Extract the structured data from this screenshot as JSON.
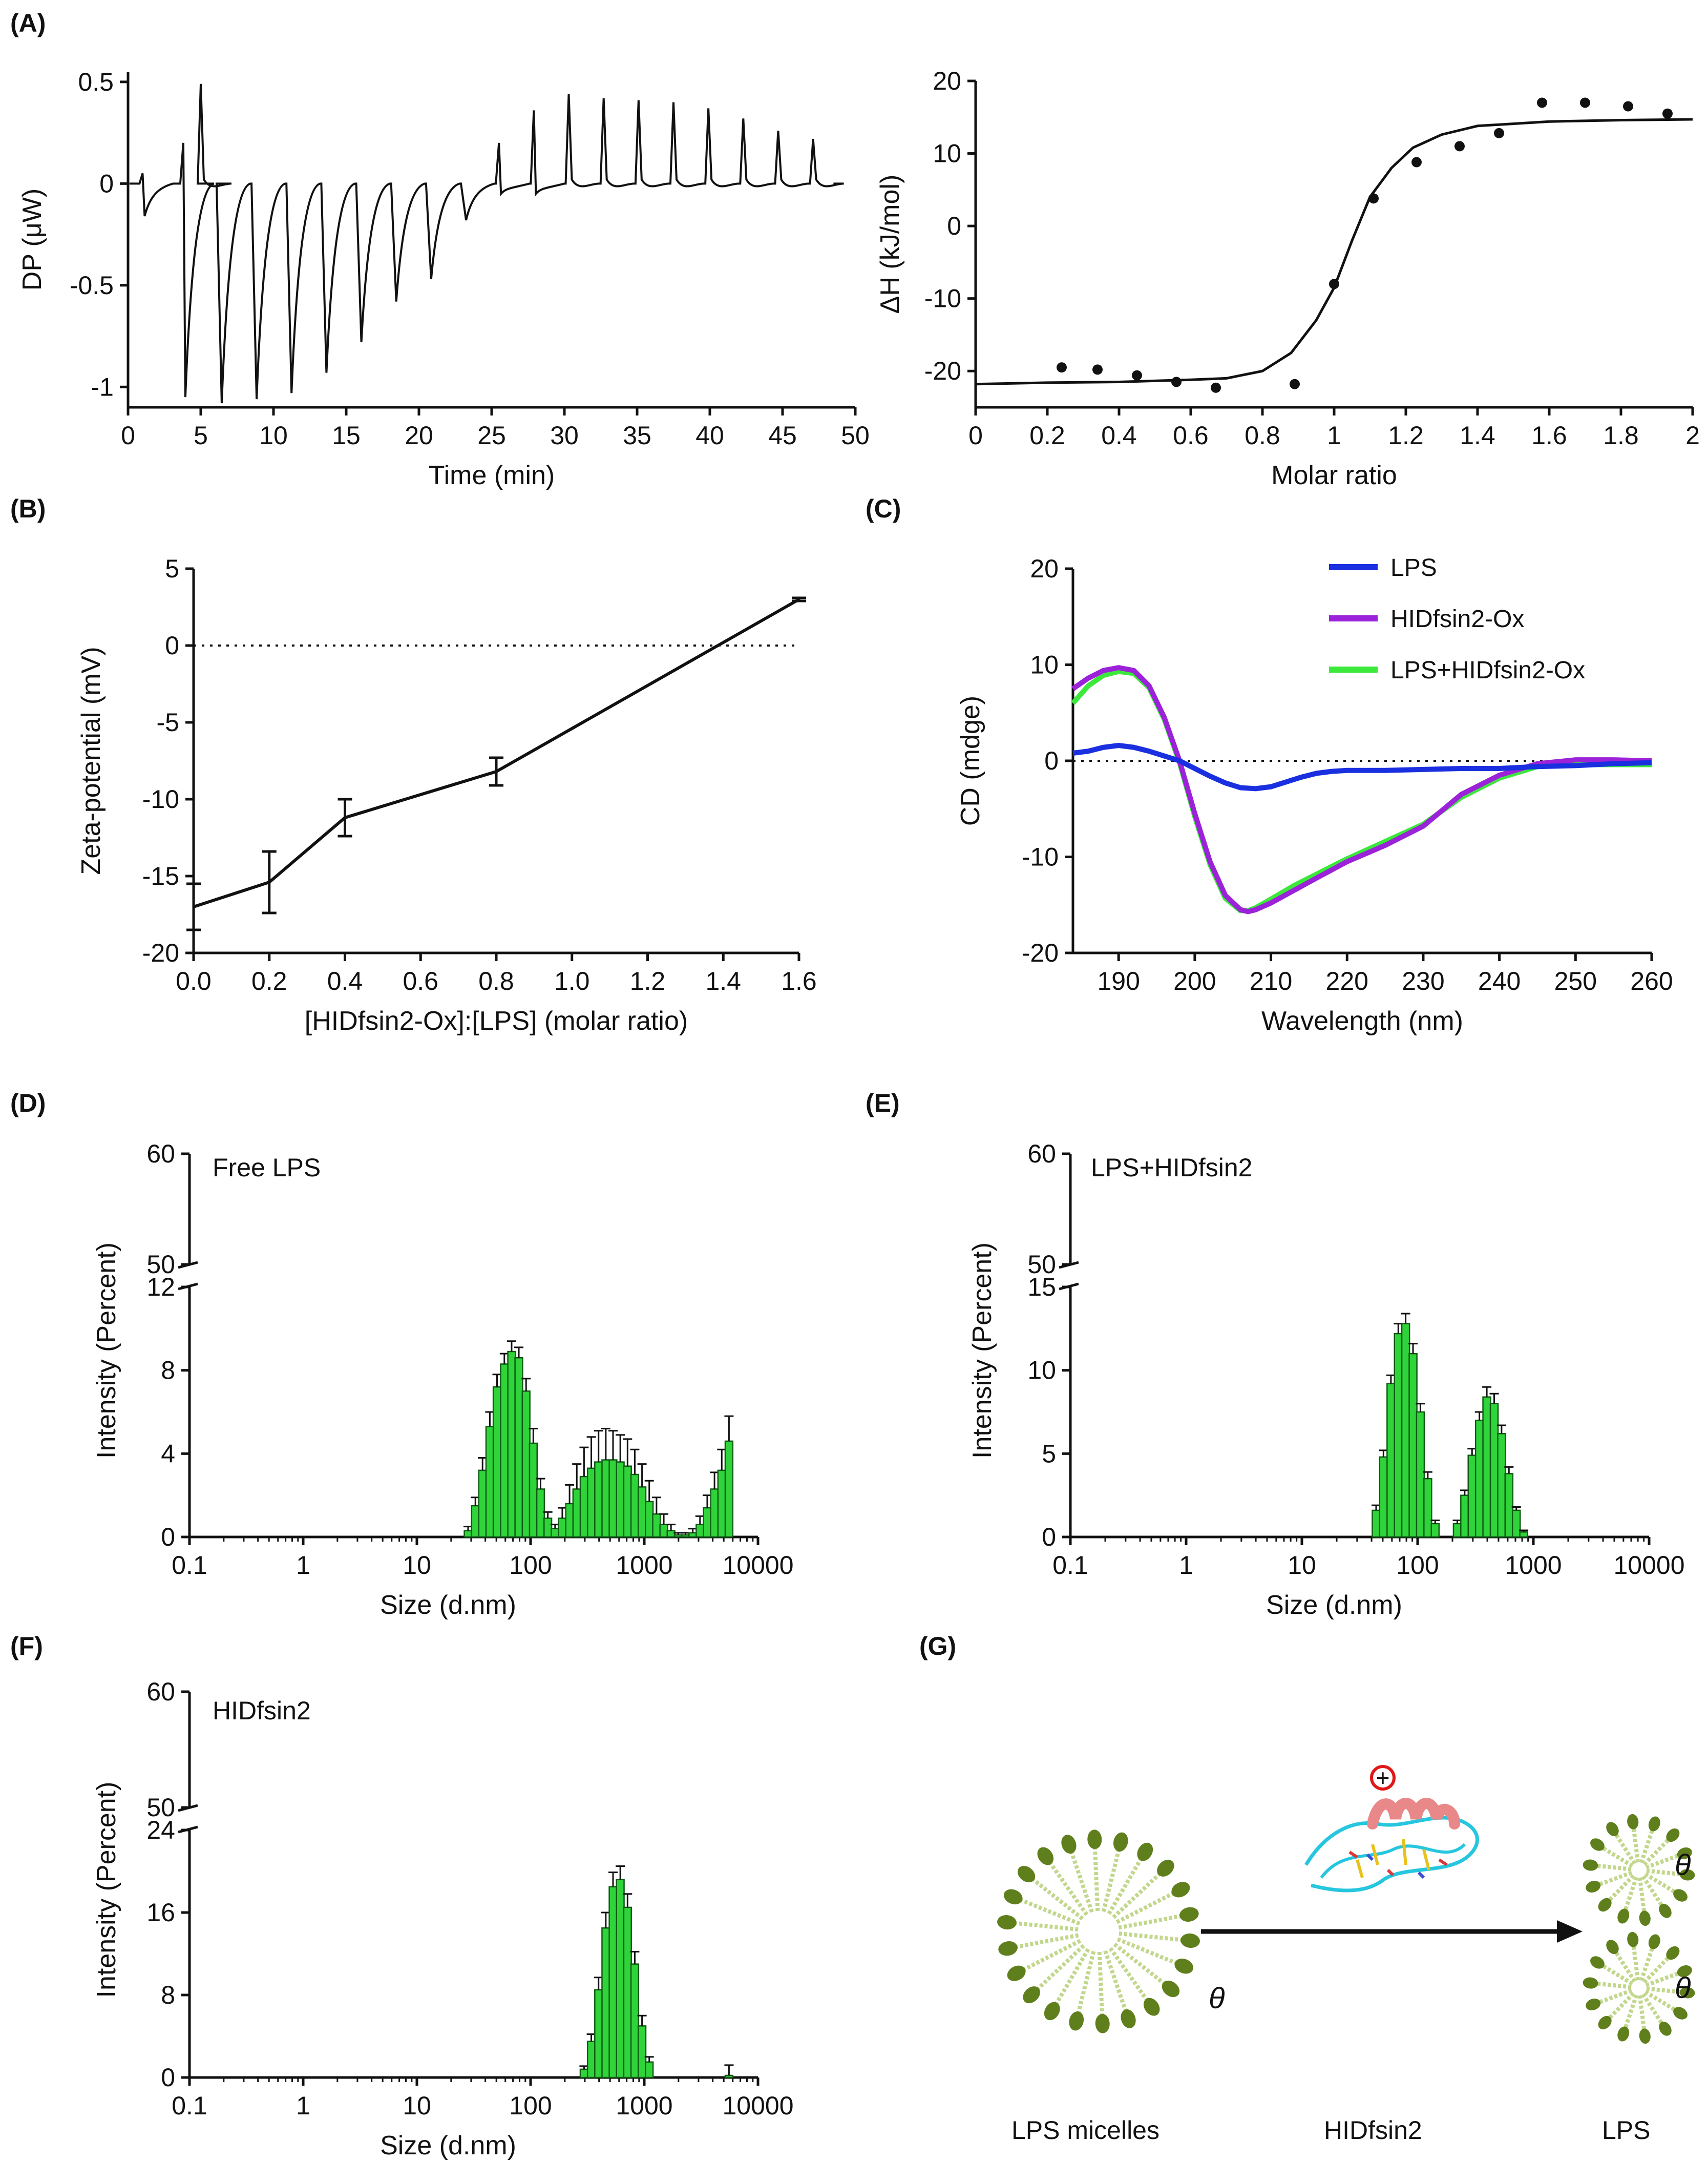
{
  "colors": {
    "lps": "#1a2fe0",
    "hidfsin2ox": "#9b22d8",
    "lps_hidfsin2ox": "#3ce83c",
    "bar_fill": "#2fd43a",
    "bar_edge": "#0f5a12",
    "micelle_head": "#5f7f1c",
    "micelle_tail": "#c2d78c",
    "peptide_helix": "#e88888",
    "peptide_coil": "#26c6de",
    "charge_plus": "#e01818"
  },
  "chart_data": [
    {
      "id": "A1",
      "panel": "(A)",
      "type": "line",
      "xlabel": "Time (min)",
      "ylabel": "DP (μW)",
      "xlim": [
        0,
        50
      ],
      "ylim": [
        -1.1,
        0.55
      ],
      "xticks": [
        "0",
        "5",
        "10",
        "15",
        "20",
        "25",
        "30",
        "35",
        "40",
        "45",
        "50"
      ],
      "yticks": [
        "0.5",
        "0",
        "-0.5",
        "-1"
      ],
      "baseline": 0.0,
      "spikes": [
        {
          "t": 1.0,
          "up": 0.05,
          "down": -0.16
        },
        {
          "t": 3.8,
          "up": 0.2,
          "down": -1.05
        },
        {
          "t": 5.0,
          "up": 0.49,
          "down": 0.0
        },
        {
          "t": 6.3,
          "up": 0.03,
          "down": -1.08
        },
        {
          "t": 8.7,
          "up": 0.03,
          "down": -1.06
        },
        {
          "t": 11.1,
          "up": 0.03,
          "down": -1.03
        },
        {
          "t": 13.5,
          "up": 0.03,
          "down": -0.93
        },
        {
          "t": 15.9,
          "up": 0.03,
          "down": -0.78
        },
        {
          "t": 18.3,
          "up": 0.03,
          "down": -0.58
        },
        {
          "t": 20.7,
          "up": 0.03,
          "down": -0.47
        },
        {
          "t": 23.1,
          "up": 0.03,
          "down": -0.18
        },
        {
          "t": 25.5,
          "up": 0.2,
          "down": -0.05
        },
        {
          "t": 27.9,
          "up": 0.36,
          "down": -0.05
        },
        {
          "t": 30.3,
          "up": 0.44,
          "down": -0.03
        },
        {
          "t": 32.7,
          "up": 0.42,
          "down": -0.03
        },
        {
          "t": 35.1,
          "up": 0.41,
          "down": -0.03
        },
        {
          "t": 37.5,
          "up": 0.4,
          "down": -0.02
        },
        {
          "t": 39.9,
          "up": 0.37,
          "down": -0.02
        },
        {
          "t": 42.3,
          "up": 0.32,
          "down": -0.02
        },
        {
          "t": 44.7,
          "up": 0.26,
          "down": -0.02
        },
        {
          "t": 47.1,
          "up": 0.22,
          "down": -0.02
        }
      ],
      "x_end": 48.5
    },
    {
      "id": "A2",
      "type": "scatter",
      "xlabel": "Molar ratio",
      "ylabel": "ΔH (kJ/mol)",
      "xlim": [
        0,
        2
      ],
      "ylim": [
        -25,
        20
      ],
      "xticks": [
        "0",
        "0.2",
        "0.4",
        "0.6",
        "0.8",
        "1",
        "1.2",
        "1.4",
        "1.6",
        "1.8",
        "2"
      ],
      "yticks": [
        "20",
        "10",
        "0",
        "-10",
        "-20"
      ],
      "points": {
        "x": [
          0.24,
          0.34,
          0.45,
          0.56,
          0.67,
          0.89,
          1.0,
          1.11,
          1.23,
          1.35,
          1.46,
          1.58,
          1.7,
          1.82,
          1.93
        ],
        "y": [
          -19.5,
          -19.8,
          -20.6,
          -21.5,
          -22.3,
          -21.8,
          -8.0,
          3.8,
          8.8,
          11.0,
          12.8,
          17.0,
          17.0,
          16.5,
          15.5
        ]
      },
      "fit": {
        "x": [
          0.0,
          0.2,
          0.4,
          0.6,
          0.7,
          0.8,
          0.88,
          0.95,
          1.0,
          1.05,
          1.1,
          1.16,
          1.22,
          1.3,
          1.4,
          1.6,
          1.8,
          2.0
        ],
        "y": [
          -21.8,
          -21.6,
          -21.5,
          -21.2,
          -21.0,
          -20.0,
          -17.5,
          -13.0,
          -8.5,
          -2.0,
          4.0,
          8.0,
          10.8,
          12.6,
          13.8,
          14.4,
          14.6,
          14.7
        ]
      }
    },
    {
      "id": "B",
      "panel": "(B)",
      "type": "line",
      "xlabel": "[HIDfsin2-Ox]:[LPS] (molar ratio)",
      "ylabel": "Zeta-potential (mV)",
      "xlim": [
        0,
        1.6
      ],
      "ylim": [
        -20,
        5
      ],
      "xticks": [
        "0.0",
        "0.2",
        "0.4",
        "0.6",
        "0.8",
        "1.0",
        "1.2",
        "1.4",
        "1.6"
      ],
      "yticks": [
        "5",
        "0",
        "-5",
        "-10",
        "-15",
        "-20"
      ],
      "x": [
        0.0,
        0.2,
        0.4,
        0.8,
        1.6
      ],
      "y": [
        -17.0,
        -15.4,
        -11.2,
        -8.2,
        3.0
      ],
      "err": [
        1.5,
        2.0,
        1.2,
        0.9,
        0.1
      ],
      "reference_line": 0
    },
    {
      "id": "C",
      "panel": "(C)",
      "type": "line",
      "xlabel": "Wavelength (nm)",
      "ylabel": "CD (mdge)",
      "xlim": [
        184,
        260
      ],
      "ylim": [
        -20,
        20
      ],
      "xticks": [
        "190",
        "200",
        "210",
        "220",
        "230",
        "240",
        "250",
        "260"
      ],
      "yticks": [
        "20",
        "10",
        "0",
        "-10",
        "-20"
      ],
      "legend": [
        "LPS",
        "HIDfsin2-Ox",
        "LPS+HIDfsin2-Ox"
      ],
      "reference_line": 0,
      "series": [
        {
          "name": "LPS",
          "color": "#1a2fe0",
          "x": [
            184,
            186,
            188,
            190,
            192,
            194,
            196,
            198,
            200,
            202,
            204,
            206,
            208,
            210,
            212,
            214,
            216,
            218,
            220,
            225,
            230,
            235,
            240,
            245,
            250,
            255,
            260
          ],
          "y": [
            0.8,
            1.0,
            1.4,
            1.6,
            1.4,
            1.0,
            0.5,
            0.0,
            -0.8,
            -1.6,
            -2.3,
            -2.8,
            -2.9,
            -2.7,
            -2.2,
            -1.7,
            -1.3,
            -1.1,
            -1.0,
            -1.0,
            -0.9,
            -0.8,
            -0.8,
            -0.6,
            -0.5,
            -0.3,
            -0.2
          ]
        },
        {
          "name": "HIDfsin2-Ox",
          "color": "#9b22d8",
          "x": [
            184,
            186,
            188,
            190,
            192,
            194,
            196,
            198,
            200,
            202,
            204,
            206,
            207,
            208,
            210,
            213,
            216,
            220,
            225,
            230,
            235,
            240,
            245,
            250,
            255,
            260
          ],
          "y": [
            7.5,
            8.6,
            9.4,
            9.7,
            9.4,
            7.8,
            4.5,
            0.0,
            -5.5,
            -10.5,
            -14.0,
            -15.5,
            -15.7,
            -15.5,
            -14.8,
            -13.5,
            -12.2,
            -10.5,
            -8.8,
            -6.8,
            -3.5,
            -1.5,
            -0.3,
            0.1,
            0.1,
            0.0
          ]
        },
        {
          "name": "LPS+HIDfsin2-Ox",
          "color": "#3ce83c",
          "x": [
            184,
            186,
            188,
            190,
            192,
            194,
            196,
            198,
            200,
            202,
            204,
            206,
            207,
            208,
            210,
            213,
            216,
            220,
            225,
            230,
            235,
            240,
            245,
            250,
            255,
            260
          ],
          "y": [
            6.0,
            7.8,
            8.9,
            9.3,
            9.1,
            7.6,
            4.3,
            -0.2,
            -5.8,
            -10.8,
            -14.3,
            -15.6,
            -15.6,
            -15.3,
            -14.4,
            -13.0,
            -11.8,
            -10.2,
            -8.4,
            -6.6,
            -3.8,
            -1.8,
            -0.6,
            -0.4,
            -0.4,
            -0.4
          ]
        }
      ]
    },
    {
      "id": "D",
      "panel": "(D)",
      "type": "bar",
      "annotation": "Free LPS",
      "xlabel": "Size (d.nm)",
      "ylabel": "Intensity (Percent)",
      "xscale": "log",
      "xlim": [
        0.1,
        10000
      ],
      "xticks": [
        "0.1",
        "1",
        "10",
        "100",
        "1000",
        "10000"
      ],
      "y_upper_ticks": [
        "60",
        "50"
      ],
      "y_lower_ticks": [
        "12",
        "8",
        "4",
        "0"
      ],
      "ylim_lower": [
        0,
        12
      ],
      "bins": {
        "size": [
          28.2,
          32.7,
          37.8,
          43.8,
          50.7,
          58.8,
          68.1,
          78.8,
          91.3,
          105.7,
          122.4,
          141.8,
          164.2,
          190.1,
          220.2,
          255.0,
          295.3,
          342.0,
          396.1,
          458.7,
          531.2,
          615.1,
          712.4,
          825.0,
          955.4,
          1106,
          1281,
          1484,
          1718,
          1990,
          2305,
          2669,
          3091,
          3580,
          4145,
          4801,
          5560
        ],
        "value": [
          0.3,
          1.5,
          3.2,
          5.3,
          7.2,
          8.3,
          8.9,
          8.6,
          7.0,
          4.5,
          2.3,
          0.9,
          0.4,
          0.9,
          1.6,
          2.3,
          2.9,
          3.3,
          3.6,
          3.7,
          3.7,
          3.6,
          3.4,
          3.0,
          2.4,
          1.7,
          1.1,
          0.6,
          0.3,
          0.1,
          0.1,
          0.2,
          0.6,
          1.4,
          2.3,
          3.2,
          4.6
        ],
        "err": [
          0.2,
          0.4,
          0.6,
          0.7,
          0.6,
          0.5,
          0.5,
          0.5,
          0.6,
          0.7,
          0.5,
          0.3,
          0.2,
          0.5,
          0.9,
          1.2,
          1.4,
          1.5,
          1.5,
          1.5,
          1.4,
          1.3,
          1.3,
          1.2,
          1.1,
          1.0,
          0.8,
          0.5,
          0.3,
          0.1,
          0.1,
          0.2,
          0.4,
          0.6,
          0.8,
          1.0,
          1.2
        ]
      }
    },
    {
      "id": "E",
      "panel": "(E)",
      "type": "bar",
      "annotation": "LPS+HIDfsin2",
      "xlabel": "Size (d.nm)",
      "ylabel": "Intensity (Percent)",
      "xscale": "log",
      "xlim": [
        0.1,
        10000
      ],
      "xticks": [
        "0.1",
        "1",
        "10",
        "100",
        "1000",
        "10000"
      ],
      "y_upper_ticks": [
        "60",
        "50"
      ],
      "y_lower_ticks": [
        "15",
        "10",
        "5",
        "0"
      ],
      "ylim_lower": [
        0,
        15
      ],
      "bins": {
        "size": [
          43.8,
          50.7,
          58.8,
          68.1,
          78.8,
          91.3,
          105.7,
          122.4,
          141.8,
          220.2,
          255.0,
          295.3,
          342.0,
          396.1,
          458.7,
          531.2,
          615.1,
          712.4,
          825.0
        ],
        "value": [
          1.6,
          4.8,
          9.2,
          12.2,
          12.8,
          11.0,
          7.5,
          3.5,
          0.8,
          0.8,
          2.5,
          4.9,
          7.0,
          8.4,
          8.0,
          6.2,
          3.8,
          1.6,
          0.3
        ],
        "err": [
          0.3,
          0.4,
          0.5,
          0.6,
          0.6,
          0.6,
          0.5,
          0.4,
          0.2,
          0.2,
          0.3,
          0.4,
          0.5,
          0.6,
          0.6,
          0.5,
          0.4,
          0.2,
          0.1
        ]
      }
    },
    {
      "id": "F",
      "panel": "(F)",
      "type": "bar",
      "annotation": "HIDfsin2",
      "xlabel": "Size (d.nm)",
      "ylabel": "Intensity (Percent)",
      "xscale": "log",
      "xlim": [
        0.1,
        10000
      ],
      "xticks": [
        "0.1",
        "1",
        "10",
        "100",
        "1000",
        "10000"
      ],
      "y_upper_ticks": [
        "60",
        "50"
      ],
      "y_lower_ticks": [
        "24",
        "16",
        "8",
        "0"
      ],
      "ylim_lower": [
        0,
        24
      ],
      "bins": {
        "size": [
          295.3,
          342.0,
          396.1,
          458.7,
          531.2,
          615.1,
          712.4,
          825.0,
          955.4,
          1106,
          5560
        ],
        "value": [
          0.8,
          3.5,
          8.5,
          14.5,
          18.5,
          19.2,
          16.5,
          11.0,
          5.0,
          1.5,
          0.2
        ],
        "err": [
          0.3,
          0.7,
          1.2,
          1.5,
          1.4,
          1.3,
          1.3,
          1.2,
          1.0,
          0.5,
          1.0
        ]
      }
    }
  ],
  "panel_labels": {
    "A": "(A)",
    "B": "(B)",
    "C": "(C)",
    "D": "(D)",
    "E": "(E)",
    "F": "(F)",
    "G": "(G)"
  },
  "schematic": {
    "panel": "(G)",
    "left_label": "LPS  micelles",
    "middle_label": "HIDfsin2",
    "right_label": "LPS",
    "plus_symbol": "+",
    "minus_symbol": "θ",
    "icons": [
      "lps-micelle-icon",
      "peptide-structure-icon",
      "arrow-right-icon"
    ]
  }
}
